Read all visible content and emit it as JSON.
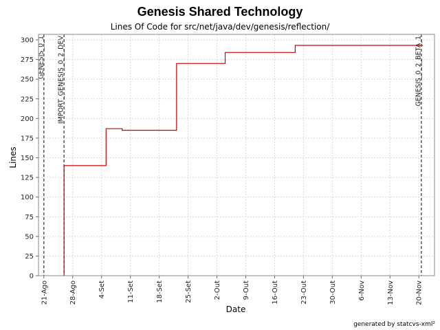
{
  "chart_data": {
    "type": "line",
    "step": true,
    "title": "Genesis Shared Technology",
    "subtitle": "Lines Of Code for src/net/java/dev/genesis/reflection/",
    "xlabel": "Date",
    "ylabel": "Lines",
    "ylim": [
      0,
      307
    ],
    "yticks": [
      0,
      25,
      50,
      75,
      100,
      125,
      150,
      175,
      200,
      225,
      250,
      275,
      300
    ],
    "xlim_days": [
      -1.3,
      94.8
    ],
    "xticks": [
      {
        "label": "21-Ago",
        "day": 0
      },
      {
        "label": "28-Ago",
        "day": 7
      },
      {
        "label": "4-Set",
        "day": 14
      },
      {
        "label": "11-Set",
        "day": 21
      },
      {
        "label": "18-Set",
        "day": 28
      },
      {
        "label": "25-Set",
        "day": 35
      },
      {
        "label": "2-Out",
        "day": 42
      },
      {
        "label": "9-Out",
        "day": 49
      },
      {
        "label": "16-Out",
        "day": 56
      },
      {
        "label": "23-Out",
        "day": 63
      },
      {
        "label": "30-Out",
        "day": 70
      },
      {
        "label": "6-Nov",
        "day": 77
      },
      {
        "label": "13-Nov",
        "day": 84
      },
      {
        "label": "20-Nov",
        "day": 91
      }
    ],
    "grid": true,
    "series": [
      {
        "color": "#cc0000",
        "points": [
          {
            "day": 4.9,
            "value": 0
          },
          {
            "day": 4.9,
            "value": 140
          },
          {
            "day": 15.1,
            "value": 140
          },
          {
            "day": 15.1,
            "value": 187
          },
          {
            "day": 19.0,
            "value": 187
          },
          {
            "day": 19.0,
            "value": 185
          },
          {
            "day": 32.2,
            "value": 185
          },
          {
            "day": 32.2,
            "value": 270
          },
          {
            "day": 44.0,
            "value": 270
          },
          {
            "day": 44.0,
            "value": 284
          },
          {
            "day": 61.0,
            "value": 284
          },
          {
            "day": 61.0,
            "value": 293
          },
          {
            "day": 92.0,
            "value": 293
          }
        ]
      }
    ],
    "markers": [
      {
        "label": "GENESIS_0_1",
        "day": 0.0
      },
      {
        "label": "IMPORT_GENESIS_0_2_DEV",
        "day": 4.9
      },
      {
        "label": "GENESIS_0_2_BETA_1",
        "day": 91.6
      }
    ]
  },
  "footer": "generated by statcvs-xml²"
}
